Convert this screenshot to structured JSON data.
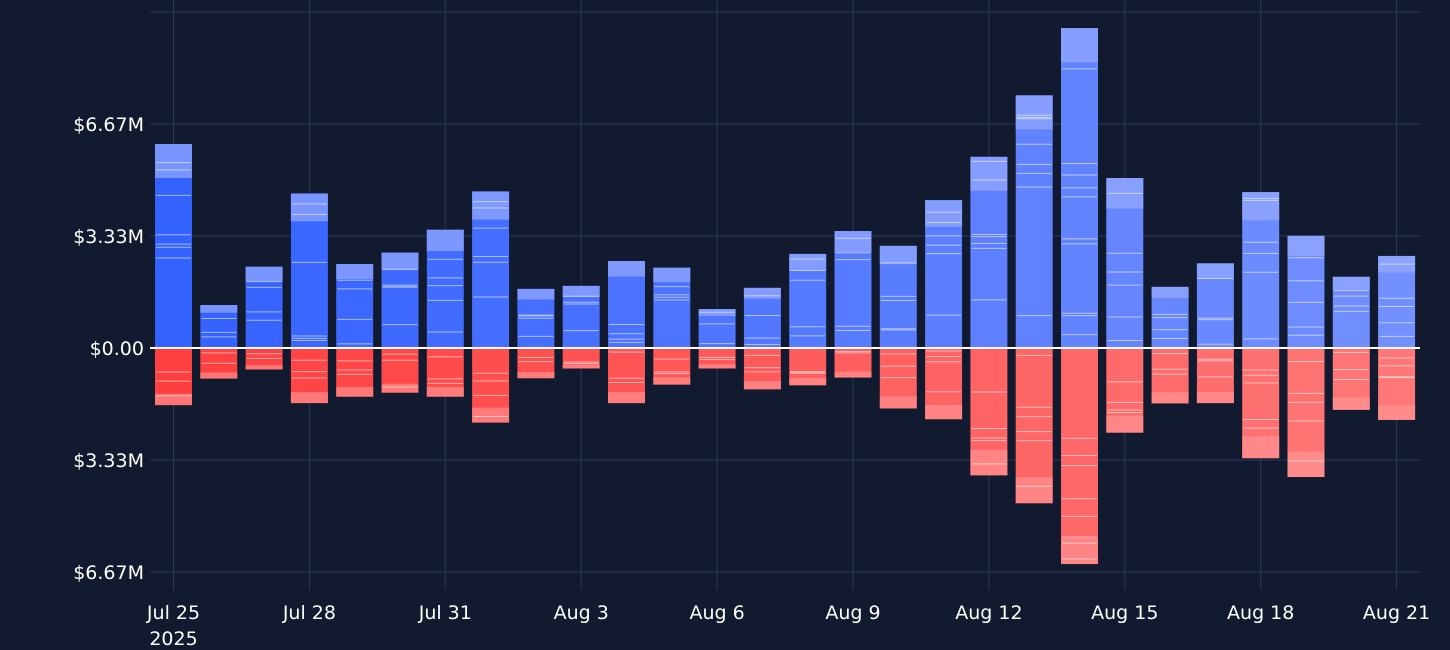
{
  "chart_data": {
    "type": "bar",
    "title": "",
    "xlabel": "",
    "ylabel": "",
    "ylim": [
      -7400000,
      10000000
    ],
    "grid": true,
    "legend": "none",
    "y_ticks": [
      {
        "value": 6666667,
        "label": "$6.67M"
      },
      {
        "value": 3333333,
        "label": "$3.33M"
      },
      {
        "value": 0,
        "label": "$0.00"
      },
      {
        "value": -3333333,
        "label": "$3.33M"
      },
      {
        "value": -6666667,
        "label": "$6.67M"
      }
    ],
    "x_ticks": [
      {
        "date": "2025-07-25",
        "label": "Jul 25",
        "sublabel": "2025"
      },
      {
        "date": "2025-07-28",
        "label": "Jul 28",
        "sublabel": ""
      },
      {
        "date": "2025-07-31",
        "label": "Jul 31",
        "sublabel": ""
      },
      {
        "date": "2025-08-03",
        "label": "Aug 3",
        "sublabel": ""
      },
      {
        "date": "2025-08-06",
        "label": "Aug 6",
        "sublabel": ""
      },
      {
        "date": "2025-08-09",
        "label": "Aug 9",
        "sublabel": ""
      },
      {
        "date": "2025-08-12",
        "label": "Aug 12",
        "sublabel": ""
      },
      {
        "date": "2025-08-15",
        "label": "Aug 15",
        "sublabel": ""
      },
      {
        "date": "2025-08-18",
        "label": "Aug 18",
        "sublabel": ""
      },
      {
        "date": "2025-08-21",
        "label": "Aug 21",
        "sublabel": ""
      }
    ],
    "positive_color_dark": "#2255ff",
    "positive_color_light": "#96a9ff",
    "negative_color_dark": "#ff3535",
    "negative_color_light": "#ff9a9a",
    "zero_line_color": "#ffffff",
    "background": "#111a2e",
    "grid_color": "#2a3958",
    "bars": [
      {
        "date": "2025-07-25",
        "positive": 6070000,
        "negative": -1700000
      },
      {
        "date": "2025-07-26",
        "positive": 1280000,
        "negative": -910000
      },
      {
        "date": "2025-07-27",
        "positive": 2420000,
        "negative": -640000
      },
      {
        "date": "2025-07-28",
        "positive": 4600000,
        "negative": -1640000
      },
      {
        "date": "2025-07-29",
        "positive": 2500000,
        "negative": -1450000
      },
      {
        "date": "2025-07-30",
        "positive": 2840000,
        "negative": -1330000
      },
      {
        "date": "2025-07-31",
        "positive": 3520000,
        "negative": -1450000
      },
      {
        "date": "2025-08-01",
        "positive": 4660000,
        "negative": -2220000
      },
      {
        "date": "2025-08-02",
        "positive": 1760000,
        "negative": -900000
      },
      {
        "date": "2025-08-03",
        "positive": 1850000,
        "negative": -610000
      },
      {
        "date": "2025-08-04",
        "positive": 2590000,
        "negative": -1640000
      },
      {
        "date": "2025-08-05",
        "positive": 2390000,
        "negative": -1090000
      },
      {
        "date": "2025-08-06",
        "positive": 1160000,
        "negative": -610000
      },
      {
        "date": "2025-08-07",
        "positive": 1790000,
        "negative": -1230000
      },
      {
        "date": "2025-08-08",
        "positive": 2800000,
        "negative": -1110000
      },
      {
        "date": "2025-08-09",
        "positive": 3480000,
        "negative": -880000
      },
      {
        "date": "2025-08-10",
        "positive": 3040000,
        "negative": -1800000
      },
      {
        "date": "2025-08-11",
        "positive": 4400000,
        "negative": -2120000
      },
      {
        "date": "2025-08-12",
        "positive": 5690000,
        "negative": -3790000
      },
      {
        "date": "2025-08-13",
        "positive": 7520000,
        "negative": -4620000
      },
      {
        "date": "2025-08-14",
        "positive": 9520000,
        "negative": -6430000
      },
      {
        "date": "2025-08-15",
        "positive": 5060000,
        "negative": -2520000
      },
      {
        "date": "2025-08-16",
        "positive": 1820000,
        "negative": -1650000
      },
      {
        "date": "2025-08-17",
        "positive": 2520000,
        "negative": -1640000
      },
      {
        "date": "2025-08-18",
        "positive": 4640000,
        "negative": -3280000
      },
      {
        "date": "2025-08-19",
        "positive": 3340000,
        "negative": -3840000
      },
      {
        "date": "2025-08-20",
        "positive": 2120000,
        "negative": -1840000
      },
      {
        "date": "2025-08-21",
        "positive": 2740000,
        "negative": -2140000
      }
    ]
  }
}
